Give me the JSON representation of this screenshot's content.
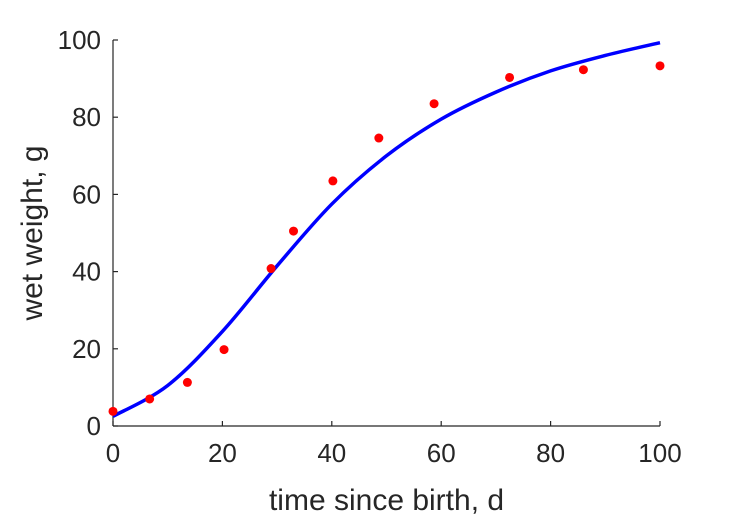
{
  "chart_data": {
    "type": "scatter",
    "xlabel": "time since birth, d",
    "ylabel": "wet weight, g",
    "xlim": [
      0,
      100
    ],
    "ylim": [
      0,
      100
    ],
    "xticks": [
      0,
      20,
      40,
      60,
      80,
      100
    ],
    "yticks": [
      0,
      20,
      40,
      60,
      80,
      100
    ],
    "grid": false,
    "box": false,
    "series": [
      {
        "kind": "points",
        "color": "#ff0000",
        "x": [
          0,
          6.7,
          13.6,
          20.3,
          28.9,
          33.0,
          40.2,
          48.6,
          58.7,
          72.5,
          86.0,
          100
        ],
        "y": [
          3.8,
          7.0,
          11.3,
          19.8,
          40.8,
          50.5,
          63.5,
          74.6,
          83.5,
          90.3,
          92.3,
          93.3
        ]
      },
      {
        "kind": "line",
        "color": "#0000ff",
        "x": [
          0,
          10,
          20,
          30,
          40,
          50,
          60,
          70,
          80,
          90,
          100
        ],
        "y": [
          2.5,
          10.5,
          24.5,
          41.5,
          57.5,
          70.0,
          79.5,
          86.5,
          92.0,
          96.0,
          99.3
        ]
      }
    ]
  }
}
